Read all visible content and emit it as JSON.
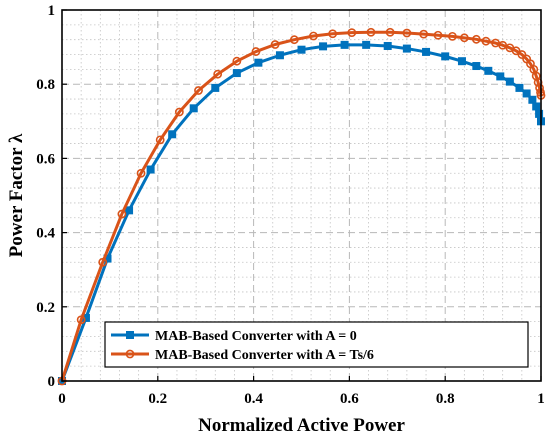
{
  "chart_data": {
    "type": "line",
    "xlabel": "Normalized Active Power",
    "ylabel": "Power Factor λ",
    "xlim": [
      0,
      1
    ],
    "ylim": [
      0,
      1
    ],
    "xticks": [
      "0",
      "0.2",
      "0.4",
      "0.6",
      "0.8",
      "1"
    ],
    "yticks": [
      "0",
      "0.2",
      "0.4",
      "0.6",
      "0.8",
      "1"
    ],
    "grid": true,
    "legend_position": "bottom-right",
    "series": [
      {
        "name": "MAB-Based Converter with A = 0",
        "color": "#0072BD",
        "marker": "square",
        "x": [
          0,
          0.05,
          0.095,
          0.14,
          0.185,
          0.23,
          0.275,
          0.32,
          0.365,
          0.41,
          0.455,
          0.5,
          0.545,
          0.59,
          0.635,
          0.68,
          0.72,
          0.76,
          0.8,
          0.835,
          0.865,
          0.89,
          0.915,
          0.935,
          0.955,
          0.97,
          0.982,
          0.99,
          0.996,
          1.0
        ],
        "y": [
          0,
          0.17,
          0.33,
          0.46,
          0.57,
          0.665,
          0.735,
          0.79,
          0.83,
          0.858,
          0.878,
          0.893,
          0.902,
          0.906,
          0.906,
          0.903,
          0.896,
          0.887,
          0.875,
          0.862,
          0.849,
          0.836,
          0.821,
          0.807,
          0.79,
          0.775,
          0.758,
          0.74,
          0.72,
          0.7
        ]
      },
      {
        "name": "MAB-Based Converter with A = Ts/6",
        "color": "#D95319",
        "marker": "circle",
        "x": [
          0,
          0.04,
          0.085,
          0.125,
          0.165,
          0.205,
          0.245,
          0.285,
          0.325,
          0.365,
          0.405,
          0.445,
          0.485,
          0.525,
          0.565,
          0.605,
          0.645,
          0.685,
          0.72,
          0.755,
          0.785,
          0.815,
          0.84,
          0.865,
          0.885,
          0.905,
          0.92,
          0.935,
          0.948,
          0.96,
          0.97,
          0.978,
          0.985,
          0.99,
          0.994,
          0.997,
          0.999,
          1.0
        ],
        "y": [
          0,
          0.165,
          0.32,
          0.45,
          0.56,
          0.65,
          0.725,
          0.783,
          0.827,
          0.862,
          0.888,
          0.907,
          0.92,
          0.93,
          0.936,
          0.939,
          0.94,
          0.94,
          0.938,
          0.935,
          0.932,
          0.929,
          0.925,
          0.921,
          0.916,
          0.911,
          0.905,
          0.898,
          0.89,
          0.88,
          0.868,
          0.855,
          0.84,
          0.822,
          0.805,
          0.79,
          0.778,
          0.77
        ]
      }
    ]
  }
}
